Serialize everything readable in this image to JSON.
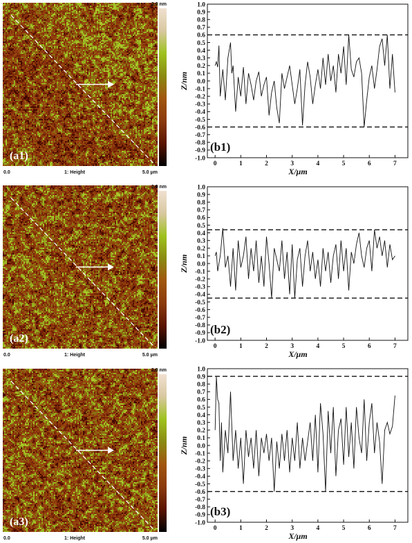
{
  "chart_data": [
    {
      "type": "heatmap",
      "panel_label": "(a1)",
      "scale_max": "2.0 nm",
      "x_start": "0.0",
      "channel": "1: Height",
      "x_end": "5.0 μm",
      "colormap": [
        "#000000",
        "#5a1400",
        "#8b3a0c",
        "#a0560e",
        "#8a8a12",
        "#9ec21e",
        "#d8c8a0",
        "#f0e0d0"
      ]
    },
    {
      "type": "line",
      "panel_label": "(b1)",
      "xlabel": "X/μm",
      "ylabel": "Z/nm",
      "xlim": [
        -0.3,
        7.5
      ],
      "ylim": [
        -1.0,
        1.0
      ],
      "xticks": [
        "0",
        "1",
        "2",
        "3",
        "4",
        "5",
        "6",
        "7"
      ],
      "yticks": [
        "1.0",
        "0.9",
        "0.8",
        "0.7",
        "0.6",
        "0.5",
        "0.4",
        "0.3",
        "0.2",
        "0.1",
        "0.0",
        "-0.1",
        "-0.2",
        "-0.3",
        "-0.4",
        "-0.5",
        "-0.6",
        "-0.7",
        "-0.8",
        "-0.9",
        "-1.0"
      ],
      "reference_lines": [
        0.6,
        -0.6
      ],
      "x": [
        0.0,
        0.05,
        0.1,
        0.15,
        0.2,
        0.3,
        0.4,
        0.5,
        0.6,
        0.65,
        0.7,
        0.8,
        0.9,
        1.0,
        1.1,
        1.2,
        1.3,
        1.4,
        1.5,
        1.6,
        1.7,
        1.8,
        1.9,
        2.0,
        2.1,
        2.2,
        2.3,
        2.4,
        2.5,
        2.6,
        2.7,
        2.8,
        2.9,
        3.0,
        3.1,
        3.2,
        3.3,
        3.4,
        3.5,
        3.6,
        3.7,
        3.8,
        3.9,
        4.0,
        4.1,
        4.2,
        4.3,
        4.4,
        4.5,
        4.6,
        4.7,
        4.8,
        4.9,
        5.0,
        5.1,
        5.2,
        5.3,
        5.4,
        5.5,
        5.6,
        5.7,
        5.8,
        5.9,
        6.0,
        6.1,
        6.2,
        6.3,
        6.4,
        6.5,
        6.6,
        6.7,
        6.8,
        6.9,
        7.0
      ],
      "values": [
        0.2,
        0.25,
        0.18,
        0.46,
        -0.2,
        0.15,
        -0.25,
        0.3,
        0.5,
        0.1,
        0.2,
        -0.4,
        0.05,
        -0.2,
        0.18,
        -0.3,
        0.1,
        -0.05,
        -0.25,
        0.0,
        0.12,
        -0.2,
        -0.05,
        0.05,
        -0.45,
        -0.15,
        0.0,
        -0.35,
        -0.55,
        0.1,
        -0.1,
        0.05,
        0.2,
        -0.05,
        -0.3,
        -0.1,
        0.15,
        -0.58,
        -0.05,
        0.25,
        0.05,
        -0.3,
        -0.05,
        0.15,
        -0.1,
        0.3,
        -0.05,
        0.35,
        0.0,
        0.2,
        -0.15,
        0.35,
        0.1,
        0.45,
        -0.05,
        0.6,
        0.15,
        0.05,
        0.25,
        0.3,
        0.1,
        -0.6,
        -0.25,
        0.05,
        0.2,
        -0.1,
        0.15,
        0.45,
        0.55,
        0.2,
        0.6,
        -0.1,
        0.35,
        -0.15
      ]
    },
    {
      "type": "heatmap",
      "panel_label": "(a2)",
      "scale_max": "2.0 nm",
      "x_start": "0.0",
      "channel": "1: Height",
      "x_end": "5.0 μm",
      "colormap": [
        "#000000",
        "#5a1400",
        "#8b3a0c",
        "#a0560e",
        "#8a8a12",
        "#9ec21e",
        "#d8c8a0",
        "#f0e0d0"
      ]
    },
    {
      "type": "line",
      "panel_label": "(b2)",
      "xlabel": "X/μm",
      "ylabel": "Z/nm",
      "xlim": [
        -0.3,
        7.5
      ],
      "ylim": [
        -1.0,
        1.0
      ],
      "xticks": [
        "0",
        "1",
        "2",
        "3",
        "4",
        "5",
        "6",
        "7"
      ],
      "yticks": [
        "1.0",
        "0.9",
        "0.8",
        "0.7",
        "0.6",
        "0.5",
        "0.4",
        "0.3",
        "0.2",
        "0.1",
        "0.0",
        "-0.1",
        "-0.2",
        "-0.3",
        "-0.4",
        "-0.5",
        "-0.6",
        "-0.7",
        "-0.8",
        "-0.9",
        "-1.0"
      ],
      "reference_lines": [
        0.44,
        -0.45
      ],
      "x": [
        0.0,
        0.05,
        0.1,
        0.2,
        0.3,
        0.4,
        0.5,
        0.6,
        0.7,
        0.8,
        0.9,
        1.0,
        1.1,
        1.2,
        1.3,
        1.4,
        1.5,
        1.6,
        1.7,
        1.8,
        1.9,
        2.0,
        2.1,
        2.2,
        2.3,
        2.4,
        2.5,
        2.6,
        2.7,
        2.8,
        2.9,
        3.0,
        3.1,
        3.2,
        3.3,
        3.4,
        3.5,
        3.6,
        3.7,
        3.8,
        3.9,
        4.0,
        4.1,
        4.2,
        4.3,
        4.4,
        4.5,
        4.6,
        4.7,
        4.8,
        4.9,
        5.0,
        5.1,
        5.2,
        5.3,
        5.4,
        5.5,
        5.6,
        5.7,
        5.8,
        5.9,
        6.0,
        6.1,
        6.2,
        6.3,
        6.4,
        6.5,
        6.6,
        6.7,
        6.8,
        6.9,
        7.0
      ],
      "values": [
        0.1,
        0.15,
        -0.1,
        0.1,
        0.46,
        -0.05,
        0.1,
        -0.3,
        0.2,
        -0.35,
        0.3,
        -0.05,
        0.1,
        0.35,
        -0.2,
        0.2,
        -0.1,
        0.3,
        -0.25,
        0.1,
        -0.3,
        0.35,
        0.0,
        -0.45,
        0.2,
        0.05,
        -0.1,
        0.3,
        -0.2,
        0.15,
        -0.4,
        0.25,
        -0.45,
        0.05,
        0.2,
        -0.3,
        0.1,
        0.3,
        -0.1,
        0.15,
        -0.2,
        0.05,
        -0.3,
        0.2,
        -0.1,
        0.15,
        -0.25,
        0.1,
        0.25,
        -0.2,
        0.3,
        -0.1,
        0.2,
        -0.35,
        0.15,
        0.0,
        0.25,
        0.4,
        0.1,
        -0.05,
        0.2,
        0.3,
        -0.1,
        0.44,
        0.2,
        0.35,
        0.1,
        0.3,
        -0.05,
        0.25,
        0.05,
        0.1
      ]
    },
    {
      "type": "heatmap",
      "panel_label": "(a3)",
      "scale_max": "2.0 nm",
      "x_start": "0.0",
      "channel": "1: Height",
      "x_end": "5.0 μm",
      "colormap": [
        "#000000",
        "#5a1400",
        "#8b3a0c",
        "#a0560e",
        "#8a8a12",
        "#9ec21e",
        "#d8c8a0",
        "#f0e0d0"
      ]
    },
    {
      "type": "line",
      "panel_label": "(b3)",
      "xlabel": "X/μm",
      "ylabel": "Z/nm",
      "xlim": [
        -0.3,
        7.5
      ],
      "ylim": [
        -1.0,
        1.0
      ],
      "xticks": [
        "0",
        "1",
        "2",
        "3",
        "4",
        "5",
        "6",
        "7"
      ],
      "yticks": [
        "1.0",
        "0.9",
        "0.8",
        "0.7",
        "0.6",
        "0.5",
        "0.4",
        "0.3",
        "0.2",
        "0.1",
        "0.0",
        "-0.1",
        "-0.2",
        "-0.3",
        "-0.4",
        "-0.5",
        "-0.6",
        "-0.7",
        "-0.8",
        "-0.9",
        "-1.0"
      ],
      "reference_lines": [
        0.9,
        -0.6
      ],
      "x": [
        0.0,
        0.05,
        0.1,
        0.15,
        0.2,
        0.25,
        0.3,
        0.4,
        0.5,
        0.6,
        0.7,
        0.8,
        0.9,
        1.0,
        1.1,
        1.2,
        1.3,
        1.4,
        1.5,
        1.6,
        1.7,
        1.8,
        1.9,
        2.0,
        2.1,
        2.2,
        2.3,
        2.4,
        2.5,
        2.6,
        2.7,
        2.8,
        2.9,
        3.0,
        3.1,
        3.2,
        3.3,
        3.4,
        3.5,
        3.6,
        3.7,
        3.8,
        3.9,
        4.0,
        4.1,
        4.2,
        4.3,
        4.4,
        4.5,
        4.6,
        4.7,
        4.8,
        4.9,
        5.0,
        5.1,
        5.2,
        5.3,
        5.4,
        5.5,
        5.6,
        5.7,
        5.8,
        5.9,
        6.0,
        6.1,
        6.2,
        6.3,
        6.4,
        6.5,
        6.6,
        6.7,
        6.8,
        6.9,
        7.0
      ],
      "values": [
        0.2,
        0.9,
        0.6,
        0.55,
        -0.2,
        0.3,
        -0.35,
        0.2,
        -0.1,
        0.7,
        -0.2,
        0.2,
        -0.3,
        0.1,
        -0.5,
        0.2,
        -0.15,
        0.1,
        -0.3,
        0.2,
        -0.4,
        0.1,
        -0.1,
        0.15,
        -0.2,
        0.1,
        -0.6,
        0.05,
        -0.3,
        0.15,
        -0.2,
        0.2,
        -0.35,
        0.1,
        -0.2,
        0.3,
        -0.3,
        0.1,
        -0.2,
        0.05,
        0.3,
        -0.2,
        0.4,
        -0.35,
        0.55,
        0.15,
        -0.6,
        0.45,
        -0.1,
        0.5,
        -0.4,
        0.2,
        0.35,
        -0.25,
        0.5,
        -0.15,
        0.3,
        -0.3,
        0.5,
        0.1,
        -0.1,
        0.6,
        -0.2,
        0.3,
        0.55,
        -0.1,
        0.3,
        0.05,
        -0.5,
        0.2,
        0.3,
        0.15,
        0.25,
        0.65
      ]
    }
  ]
}
